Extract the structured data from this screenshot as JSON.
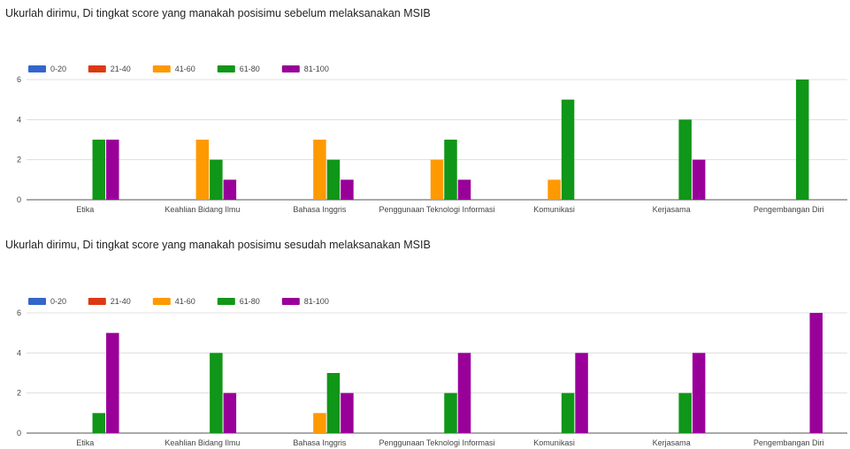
{
  "chart_data": [
    {
      "type": "bar",
      "title": "Ukurlah dirimu, Di tingkat score yang manakah posisimu sebelum melaksanakan MSIB",
      "categories": [
        "Etika",
        "Keahlian Bidang Ilmu",
        "Bahasa Inggris",
        "Penggunaan Teknologi Informasi",
        "Komunikasi",
        "Kerjasama",
        "Pengembangan Diri"
      ],
      "series": [
        {
          "name": "0-20",
          "color": "#3366cc",
          "values": [
            0,
            0,
            0,
            0,
            0,
            0,
            0
          ]
        },
        {
          "name": "21-40",
          "color": "#dc3912",
          "values": [
            0,
            0,
            0,
            0,
            0,
            0,
            0
          ]
        },
        {
          "name": "41-60",
          "color": "#ff9900",
          "values": [
            0,
            3,
            3,
            2,
            1,
            0,
            0
          ]
        },
        {
          "name": "61-80",
          "color": "#109618",
          "values": [
            3,
            2,
            2,
            3,
            5,
            4,
            6
          ]
        },
        {
          "name": "81-100",
          "color": "#990099",
          "values": [
            3,
            1,
            1,
            1,
            0,
            2,
            0
          ]
        }
      ],
      "yticks": [
        0,
        2,
        4,
        6
      ],
      "ylim": [
        0,
        6
      ],
      "xlabel": "",
      "ylabel": "",
      "legend": "top-left",
      "grid": true
    },
    {
      "type": "bar",
      "title": "Ukurlah dirimu, Di tingkat score yang manakah posisimu sesudah melaksanakan MSIB",
      "categories": [
        "Etika",
        "Keahlian Bidang Ilmu",
        "Bahasa Inggris",
        "Penggunaan Teknologi Informasi",
        "Komunikasi",
        "Kerjasama",
        "Pengembangan Diri"
      ],
      "series": [
        {
          "name": "0-20",
          "color": "#3366cc",
          "values": [
            0,
            0,
            0,
            0,
            0,
            0,
            0
          ]
        },
        {
          "name": "21-40",
          "color": "#dc3912",
          "values": [
            0,
            0,
            0,
            0,
            0,
            0,
            0
          ]
        },
        {
          "name": "41-60",
          "color": "#ff9900",
          "values": [
            0,
            0,
            1,
            0,
            0,
            0,
            0
          ]
        },
        {
          "name": "61-80",
          "color": "#109618",
          "values": [
            1,
            4,
            3,
            2,
            2,
            2,
            0
          ]
        },
        {
          "name": "81-100",
          "color": "#990099",
          "values": [
            5,
            2,
            2,
            4,
            4,
            4,
            6
          ]
        }
      ],
      "yticks": [
        0,
        2,
        4,
        6
      ],
      "ylim": [
        0,
        6
      ],
      "xlabel": "",
      "ylabel": "",
      "legend": "top-left",
      "grid": true
    }
  ]
}
